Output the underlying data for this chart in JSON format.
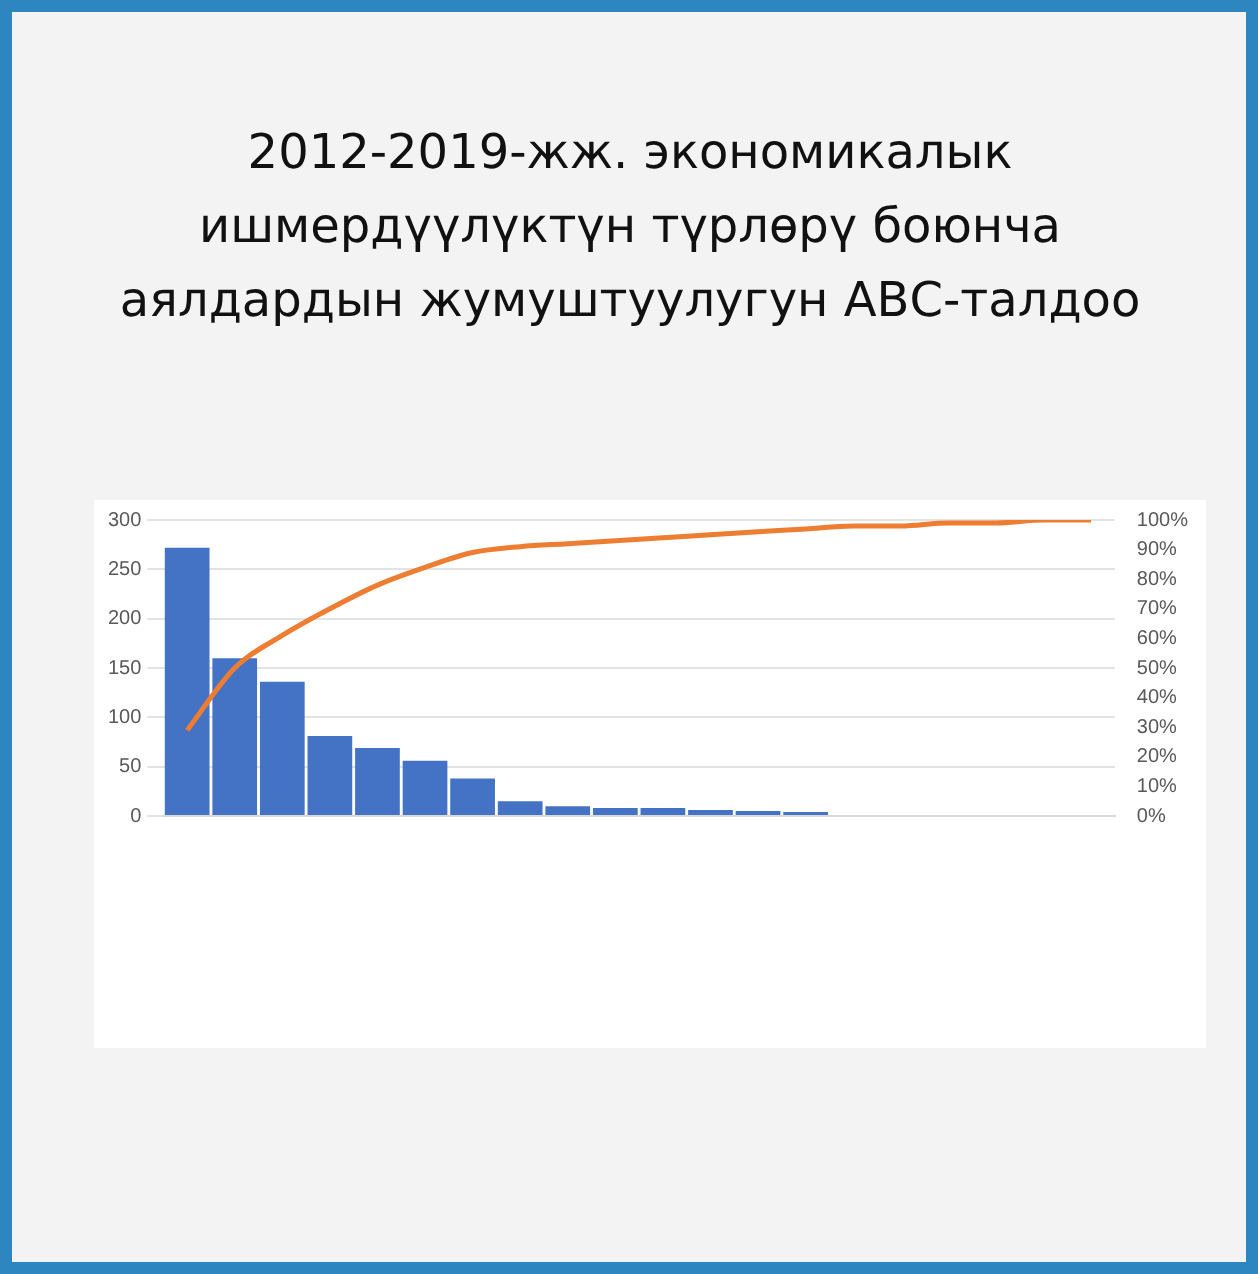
{
  "chart_data": {
    "type": "bar",
    "title": "2012-2019-жж. экономикалык ишмердүүлүктүн түрлөрү боюнча аялдардын жумуштуулугун АВС-талдоо",
    "categories": [
      null,
      null,
      null,
      null,
      null,
      null,
      null,
      null,
      null,
      null,
      null,
      null,
      null,
      null,
      null,
      null,
      null,
      null,
      null,
      null
    ],
    "series": [
      {
        "color": "#4472c4",
        "values": [
          272,
          160,
          136,
          81,
          69,
          56,
          38,
          15,
          10,
          8,
          8,
          6,
          5,
          4,
          0,
          0,
          0,
          0,
          0,
          0
        ]
      },
      {
        "type": "line",
        "axis": "y2",
        "color": "#ed7d31",
        "values": [
          29,
          50,
          61,
          70,
          78,
          84,
          89,
          91,
          92,
          93,
          94,
          95,
          96,
          97,
          98,
          98,
          99,
          99,
          100,
          100
        ]
      }
    ],
    "ylim": [
      0,
      300
    ],
    "yticks": [
      0,
      50,
      100,
      150,
      200,
      250,
      300
    ],
    "y2lim": [
      0,
      100
    ],
    "y2ticks": [
      {
        "value": 0,
        "label": "0%"
      },
      {
        "value": 10,
        "label": "10%"
      },
      {
        "value": 20,
        "label": "20%"
      },
      {
        "value": 30,
        "label": "30%"
      },
      {
        "value": 40,
        "label": "40%"
      },
      {
        "value": 50,
        "label": "50%"
      },
      {
        "value": 60,
        "label": "60%"
      },
      {
        "value": 70,
        "label": "70%"
      },
      {
        "value": 80,
        "label": "80%"
      },
      {
        "value": 90,
        "label": "90%"
      },
      {
        "value": 100,
        "label": "100%"
      }
    ],
    "grid": "y",
    "legend": false,
    "marker": "none"
  }
}
